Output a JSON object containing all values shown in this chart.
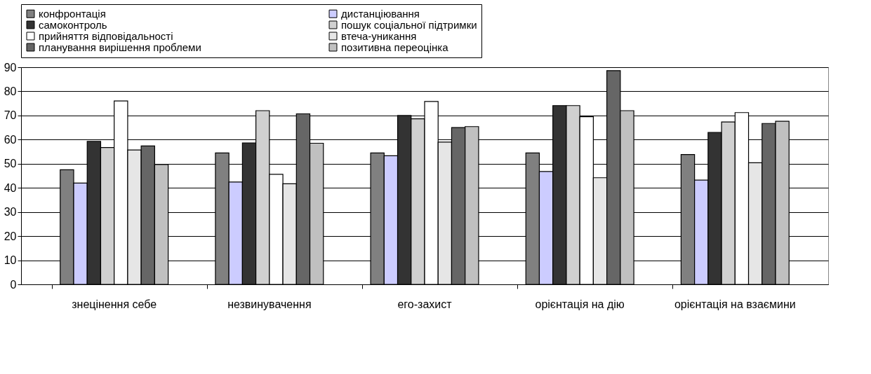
{
  "chart_data": {
    "type": "bar",
    "categories": [
      "знецінення себе",
      "незвинувачення",
      "его-захист",
      "орієнтація на дію",
      "орієнтація на взаємини"
    ],
    "series": [
      {
        "name": "конфронтація",
        "color": "#808080",
        "values": [
          47.5,
          54.5,
          54.5,
          54.5,
          53.8
        ]
      },
      {
        "name": "дистанціювання",
        "color": "#ccccff",
        "values": [
          42,
          42.4,
          53.3,
          46.8,
          43.2
        ]
      },
      {
        "name": "самоконтроль",
        "color": "#333333",
        "values": [
          59.3,
          58.6,
          70,
          74.1,
          63
        ]
      },
      {
        "name": "пошук соціальної підтримки",
        "color": "#d0d0d0",
        "values": [
          56.7,
          72,
          68.6,
          74.1,
          67.3
        ]
      },
      {
        "name": "прийняття відповідальності",
        "color": "#ffffff",
        "values": [
          76,
          45.6,
          75.8,
          69.5,
          71.2
        ]
      },
      {
        "name": "втеча-уникання",
        "color": "#e6e6e6",
        "values": [
          55.7,
          41.7,
          59,
          44.2,
          50.4
        ]
      },
      {
        "name": "планування вирішення проблеми",
        "color": "#666666",
        "values": [
          57.4,
          70.7,
          65,
          88.6,
          66.7
        ]
      },
      {
        "name": "позитивна переоцінка",
        "color": "#c0c0c0",
        "values": [
          49.7,
          58.5,
          65.4,
          72,
          67.6
        ]
      }
    ],
    "ylim": [
      0,
      90
    ],
    "yticks": [
      0,
      10,
      20,
      30,
      40,
      50,
      60,
      70,
      80,
      90
    ],
    "grid": "y",
    "legend": "top"
  }
}
